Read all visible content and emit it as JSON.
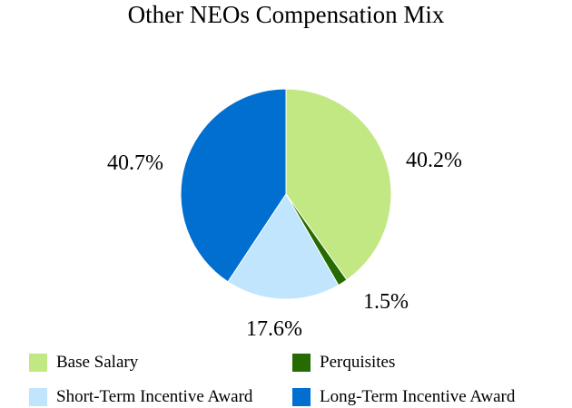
{
  "chart_data": {
    "type": "pie",
    "title": "Other NEOs Compensation Mix",
    "slices": [
      {
        "name": "Base Salary",
        "value": 40.2,
        "label": "40.2%",
        "color": "#c1e882"
      },
      {
        "name": "Perquisites",
        "value": 1.5,
        "label": "1.5%",
        "color": "#266b00"
      },
      {
        "name": "Short-Term Incentive Award",
        "value": 17.6,
        "label": "17.6%",
        "color": "#c0e5fc"
      },
      {
        "name": "Long-Term Incentive Award",
        "value": 40.7,
        "label": "40.7%",
        "color": "#006fd0"
      }
    ],
    "legend_position": "bottom"
  }
}
